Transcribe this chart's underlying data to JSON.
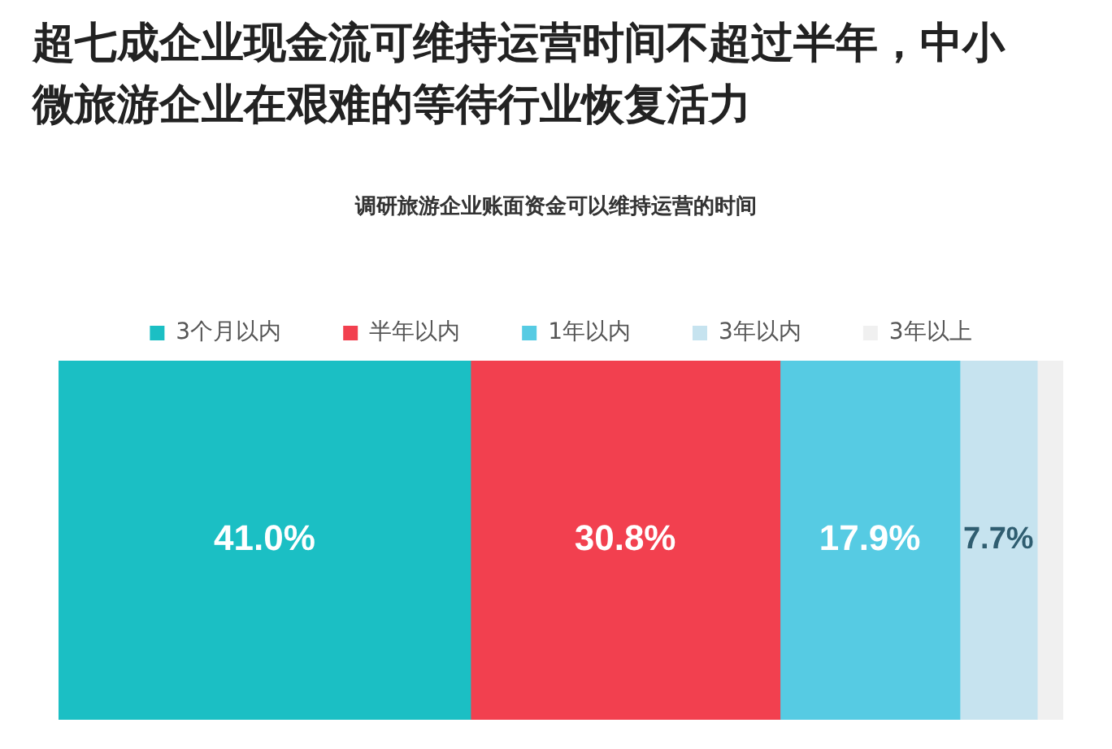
{
  "chart_data": {
    "type": "bar",
    "orientation": "horizontal",
    "stacked": true,
    "title": "超七成企业现金流可维持运营时间不超过半年，中小微旅游企业在艰难的等待行业恢复活力",
    "subtitle": "调研旅游企业账面资金可以维持运营的时间",
    "categories": [
      null
    ],
    "legend": "top",
    "series": [
      {
        "name": "3个月以内",
        "color": "#1bbfc4",
        "values": [
          41.0
        ],
        "value_labels": [
          "41.0%"
        ]
      },
      {
        "name": "半年以内",
        "color": "#f2404f",
        "values": [
          30.8
        ],
        "value_labels": [
          "30.8%"
        ]
      },
      {
        "name": "1年以内",
        "color": "#56cbe3",
        "values": [
          17.9
        ],
        "value_labels": [
          "17.9%"
        ]
      },
      {
        "name": "3年以内",
        "color": "#c6e3ef",
        "values": [
          7.7
        ],
        "value_labels": [
          "7.7%"
        ]
      },
      {
        "name": "3年以上",
        "color": "#f0f0f0",
        "values": [
          2.6
        ],
        "value_labels": [
          null
        ]
      }
    ]
  }
}
